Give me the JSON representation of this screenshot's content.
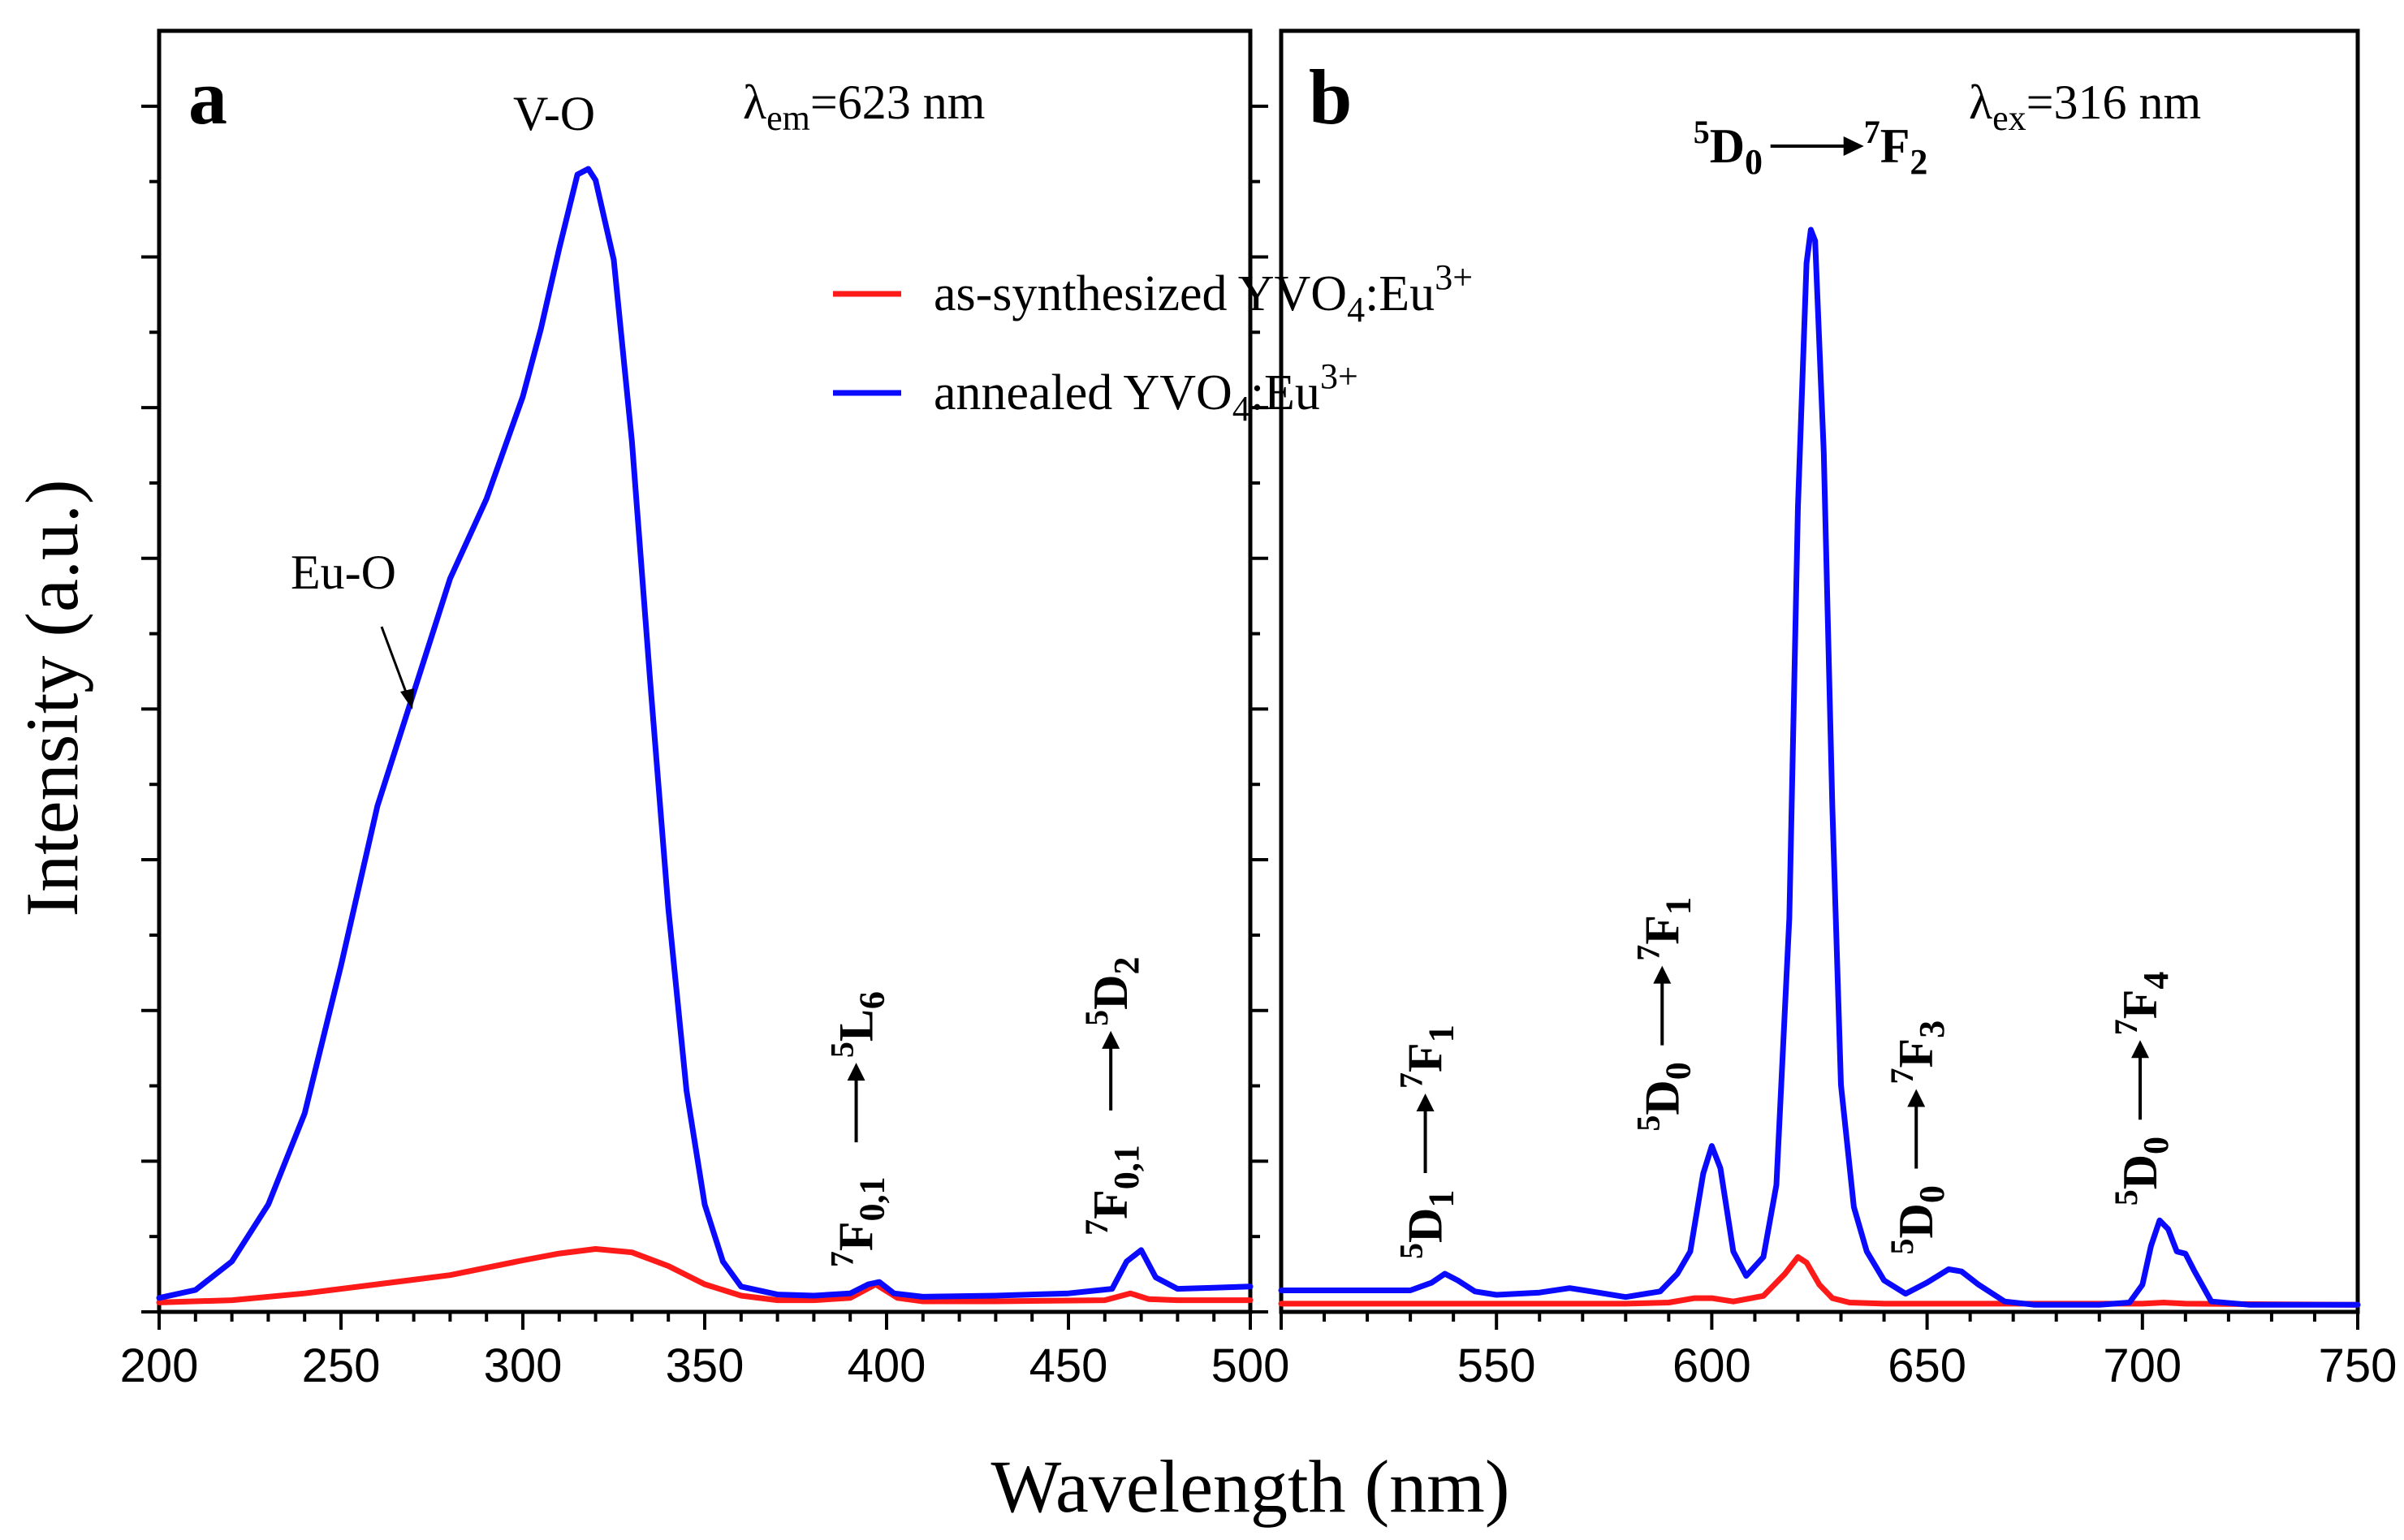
{
  "chart_data": [
    {
      "panel": "a",
      "type": "line",
      "xlabel": "Wavelength (nm)",
      "ylabel": "Intensity (a.u.)",
      "xlim": [
        200,
        500
      ],
      "ylim": [
        0,
        1
      ],
      "xticks": [
        "200",
        "250",
        "300",
        "350",
        "400",
        "450",
        "500"
      ],
      "excitation_label": {
        "prefix": "λ",
        "sub": "em",
        "value": "=623 nm"
      },
      "peak_labels": [
        "V-O",
        "Eu-O"
      ],
      "transitions": [
        {
          "lower": "7F",
          "lower_sub": "0,1",
          "upper": "5L",
          "upper_sub": "6",
          "x": 397
        },
        {
          "lower": "7F",
          "lower_sub": "0,1",
          "upper": "5D",
          "upper_sub": "2",
          "x": 467
        }
      ],
      "series": [
        {
          "name": "as-synthesized YVO4:Eu3+",
          "x": [
            200,
            220,
            240,
            260,
            280,
            300,
            310,
            320,
            330,
            340,
            350,
            360,
            370,
            380,
            390,
            397,
            403,
            410,
            430,
            460,
            467,
            472,
            480,
            500
          ],
          "y": [
            0.004,
            0.006,
            0.012,
            0.02,
            0.028,
            0.041,
            0.047,
            0.051,
            0.048,
            0.036,
            0.02,
            0.01,
            0.006,
            0.006,
            0.008,
            0.02,
            0.008,
            0.005,
            0.005,
            0.006,
            0.012,
            0.007,
            0.006,
            0.006
          ]
        },
        {
          "name": "annealed YVO4:Eu3+",
          "x": [
            200,
            210,
            220,
            230,
            240,
            250,
            260,
            270,
            280,
            290,
            300,
            305,
            310,
            315,
            318,
            320,
            325,
            330,
            335,
            340,
            345,
            350,
            355,
            360,
            370,
            380,
            390,
            395,
            398,
            402,
            410,
            430,
            450,
            462,
            466,
            470,
            474,
            480,
            490,
            500
          ],
          "y": [
            0.008,
            0.015,
            0.04,
            0.09,
            0.17,
            0.3,
            0.44,
            0.54,
            0.64,
            0.71,
            0.8,
            0.86,
            0.93,
            0.995,
            1.0,
            0.99,
            0.92,
            0.76,
            0.55,
            0.35,
            0.19,
            0.09,
            0.04,
            0.018,
            0.011,
            0.01,
            0.012,
            0.02,
            0.022,
            0.012,
            0.009,
            0.01,
            0.012,
            0.016,
            0.04,
            0.05,
            0.026,
            0.016,
            0.017,
            0.018
          ]
        }
      ]
    },
    {
      "panel": "b",
      "type": "line",
      "xlabel": "Wavelength (nm)",
      "ylabel": "Intensity (a.u.)",
      "xlim": [
        500,
        750
      ],
      "ylim": [
        0,
        1
      ],
      "xticks": [
        "550",
        "600",
        "650",
        "700",
        "750"
      ],
      "excitation_label": {
        "prefix": "λ",
        "sub": "ex",
        "value": "=316 nm"
      },
      "transitions": [
        {
          "lower": "5D",
          "lower_sub": "1",
          "upper": "7F",
          "upper_sub": "1",
          "x": 538
        },
        {
          "lower": "5D",
          "lower_sub": "0",
          "upper": "7F",
          "upper_sub": "1",
          "x": 593
        },
        {
          "lower": "5D",
          "lower_sub": "0",
          "upper": "7F",
          "upper_sub": "2",
          "x": 624
        },
        {
          "lower": "5D",
          "lower_sub": "0",
          "upper": "7F",
          "upper_sub": "3",
          "x": 652
        },
        {
          "lower": "5D",
          "lower_sub": "0",
          "upper": "7F",
          "upper_sub": "4",
          "x": 704
        }
      ],
      "series": [
        {
          "name": "as-synthesized YVO4:Eu3+",
          "x": [
            500,
            580,
            590,
            596,
            600,
            605,
            612,
            617,
            620,
            622,
            625,
            628,
            632,
            640,
            650,
            700,
            705,
            710,
            750
          ],
          "y": [
            0.003,
            0.003,
            0.004,
            0.008,
            0.008,
            0.005,
            0.01,
            0.03,
            0.045,
            0.04,
            0.02,
            0.008,
            0.004,
            0.003,
            0.003,
            0.003,
            0.004,
            0.003,
            0.002
          ]
        },
        {
          "name": "annealed YVO4:Eu3+",
          "x": [
            500,
            530,
            535,
            538,
            541,
            545,
            550,
            560,
            567,
            572,
            580,
            588,
            592,
            595,
            598,
            600,
            602,
            605,
            608,
            612,
            615,
            618,
            620,
            622,
            623,
            624,
            626,
            628,
            630,
            633,
            636,
            640,
            645,
            650,
            655,
            658,
            662,
            668,
            675,
            690,
            697,
            700,
            702,
            704,
            706,
            708,
            710,
            712,
            716,
            725,
            750
          ],
          "y": [
            0.015,
            0.015,
            0.022,
            0.03,
            0.024,
            0.014,
            0.011,
            0.013,
            0.017,
            0.014,
            0.009,
            0.014,
            0.03,
            0.05,
            0.12,
            0.145,
            0.125,
            0.05,
            0.028,
            0.045,
            0.11,
            0.35,
            0.72,
            0.94,
            0.97,
            0.96,
            0.77,
            0.45,
            0.2,
            0.09,
            0.05,
            0.024,
            0.012,
            0.022,
            0.034,
            0.032,
            0.02,
            0.005,
            0.002,
            0.002,
            0.004,
            0.02,
            0.055,
            0.078,
            0.07,
            0.05,
            0.048,
            0.033,
            0.005,
            0.002,
            0.002
          ]
        }
      ]
    }
  ],
  "legend": [
    {
      "name": "as-synthesized YVO",
      "sub": "4",
      "mid": ":Eu",
      "sup": "3+",
      "color": "#ff1a1a"
    },
    {
      "name": "annealed YVO",
      "sub": "4",
      "mid": ":Eu",
      "sup": "3+",
      "color": "#0a0aff"
    }
  ],
  "colors": {
    "red": "#ff1a1a",
    "blue": "#0a0aff",
    "axis": "#000000"
  }
}
